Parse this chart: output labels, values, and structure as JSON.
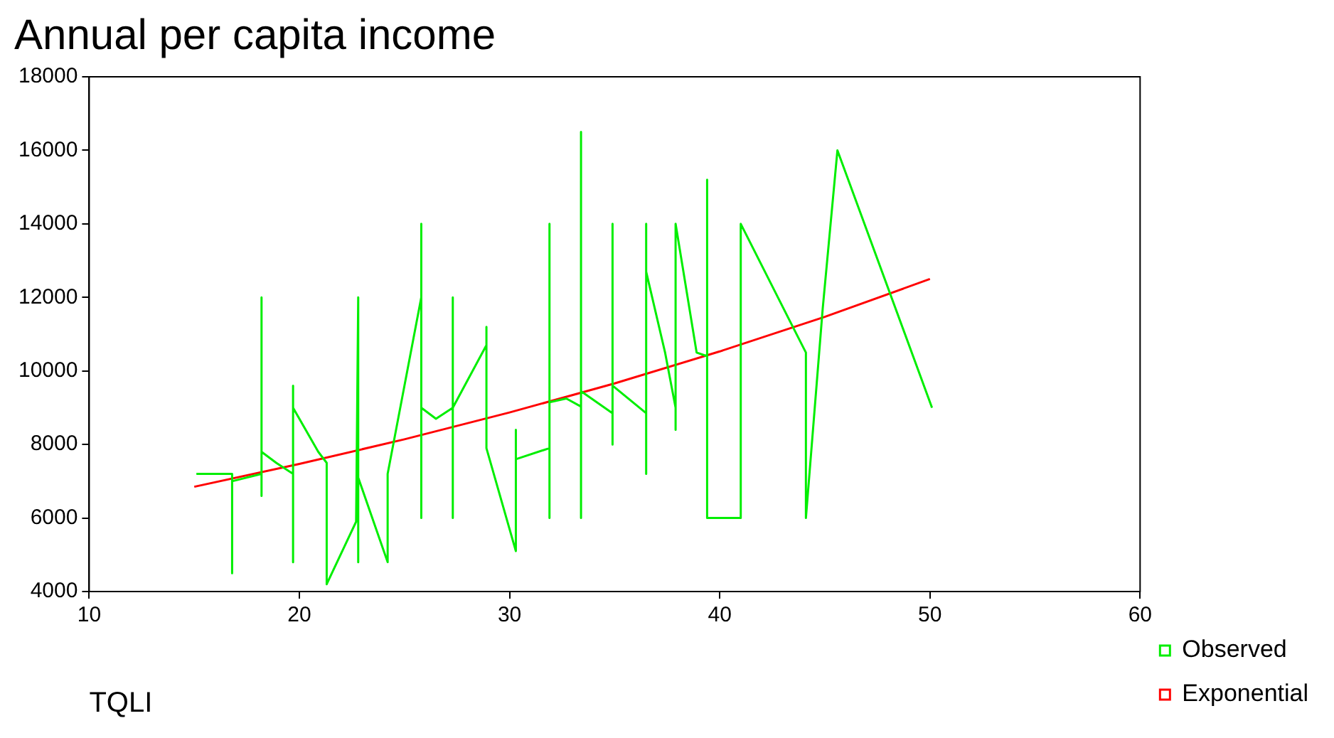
{
  "chart_data": {
    "type": "line",
    "title": "Annual per capita income",
    "xlabel": "TQLI",
    "xlim": [
      10,
      60
    ],
    "xticks": [
      10,
      20,
      30,
      40,
      50,
      60
    ],
    "ylim": [
      4000,
      18000
    ],
    "yticks": [
      4000,
      6000,
      8000,
      10000,
      12000,
      14000,
      16000,
      18000
    ],
    "grid": false,
    "legend": "bottom right",
    "series": [
      {
        "name": "Observed",
        "color": "#00ee00",
        "x": [
          15.1,
          16.8,
          16.8,
          16.8,
          18.2,
          18.2,
          18.2,
          18.2,
          18.9,
          19.7,
          19.7,
          19.7,
          19.7,
          20.9,
          21.3,
          21.3,
          22.7,
          22.8,
          22.8,
          22.8,
          24.2,
          24.2,
          24.6,
          25.8,
          25.8,
          25.8,
          25.8,
          26.5,
          27.3,
          27.3,
          27.3,
          27.3,
          28.9,
          28.9,
          28.9,
          30.3,
          30.3,
          30.3,
          31.9,
          31.9,
          31.9,
          31.9,
          32.7,
          33.4,
          33.4,
          33.4,
          33.4,
          34.9,
          34.9,
          34.9,
          34.9,
          36.5,
          36.5,
          36.5,
          36.5,
          37.4,
          37.9,
          37.9,
          37.9,
          38.9,
          39.4,
          39.4,
          39.4,
          41.0,
          41.0,
          43.3,
          44.1,
          44.1,
          44.9,
          45.6,
          50.1
        ],
        "values": [
          7200,
          7200,
          4500,
          7000,
          7200,
          12000,
          6600,
          7800,
          7500,
          7200,
          9600,
          4800,
          9000,
          7800,
          7500,
          4200,
          5900,
          12000,
          4800,
          7100,
          4800,
          7200,
          8400,
          12000,
          14000,
          6000,
          9000,
          8700,
          9000,
          12000,
          6000,
          9000,
          10700,
          11200,
          7900,
          5100,
          8400,
          7600,
          7900,
          14000,
          6000,
          9150,
          9250,
          9030,
          16500,
          6000,
          9450,
          8850,
          14000,
          8000,
          9600,
          8850,
          14000,
          7200,
          12700,
          10500,
          9000,
          8400,
          14000,
          10500,
          10400,
          15200,
          6000,
          6000,
          14000,
          11400,
          10500,
          6000,
          11700,
          16000,
          9000
        ]
      },
      {
        "name": "Exponential",
        "color": "#ff0000",
        "x": [
          15,
          20,
          25,
          30,
          35,
          40,
          45,
          50
        ],
        "values": [
          6850,
          7470,
          8140,
          8870,
          9660,
          10530,
          11470,
          12500
        ]
      }
    ]
  }
}
